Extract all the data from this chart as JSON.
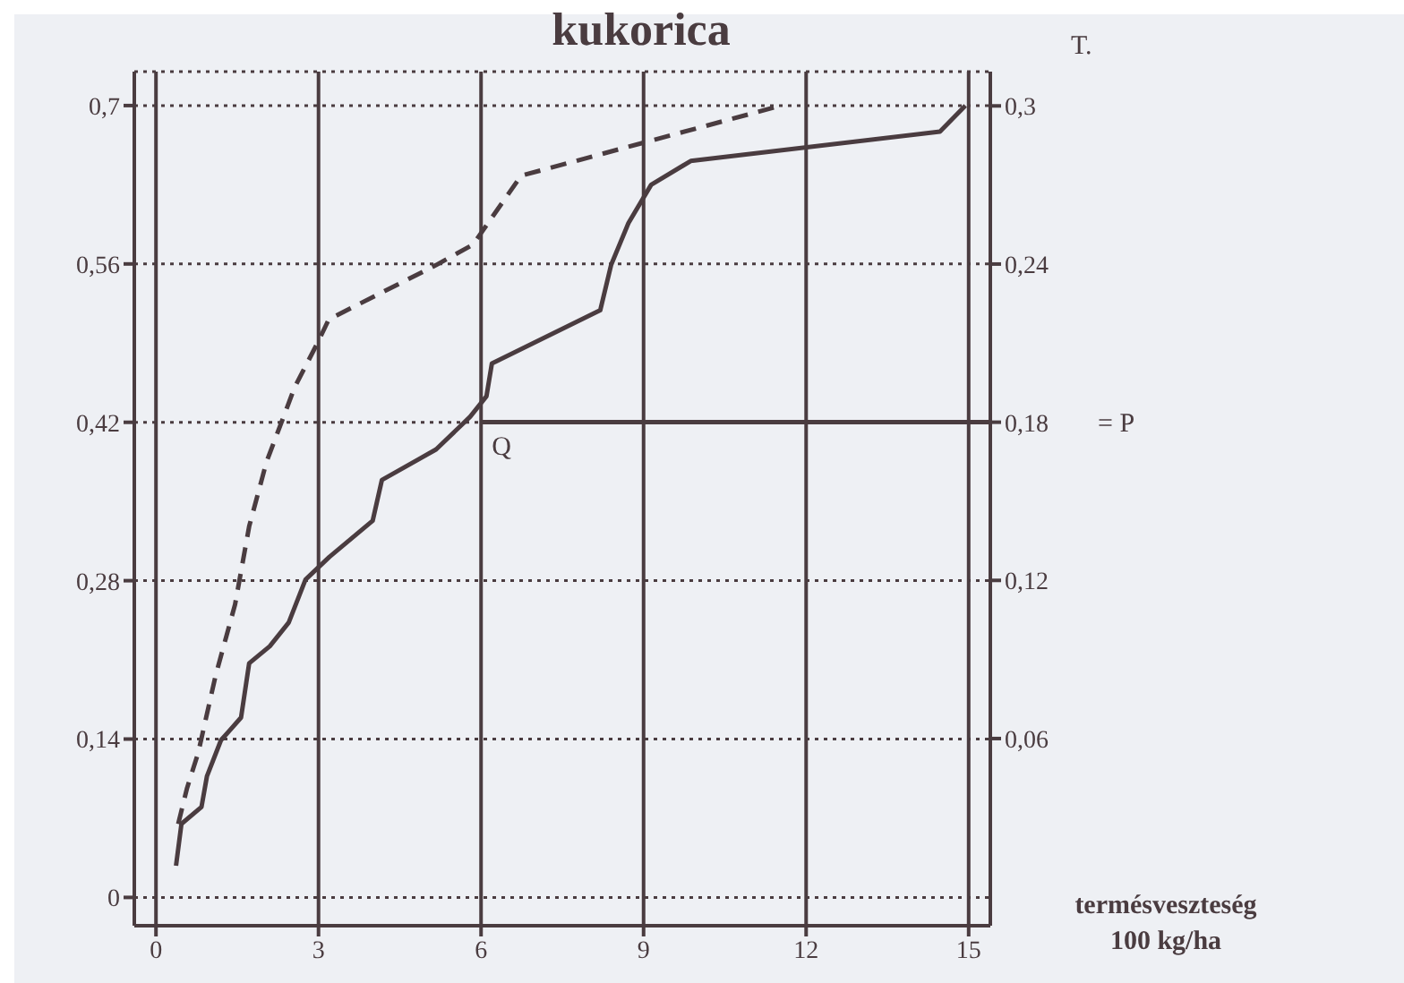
{
  "chart_data": {
    "type": "line",
    "title": "kukorica",
    "xlabel": "termésveszteség\n100 kg/ha",
    "y2label": "T.",
    "xlim": [
      -0.4,
      15.4
    ],
    "xticks": [
      0,
      3,
      6,
      9,
      12,
      15
    ],
    "ylim": [
      -0.025,
      0.73
    ],
    "yticks": [
      {
        "value": 0,
        "label": "0"
      },
      {
        "value": 0.14,
        "label": "0,14"
      },
      {
        "value": 0.28,
        "label": "0,28"
      },
      {
        "value": 0.42,
        "label": "0,42"
      },
      {
        "value": 0.56,
        "label": "0,56"
      },
      {
        "value": 0.7,
        "label": "0,7"
      }
    ],
    "y2lim": [
      -0.011,
      0.313
    ],
    "y2ticks": [
      {
        "value": 0.06,
        "label": "0,06"
      },
      {
        "value": 0.12,
        "label": "0,12"
      },
      {
        "value": 0.18,
        "label": "0,18"
      },
      {
        "value": 0.24,
        "label": "0,24"
      },
      {
        "value": 0.3,
        "label": "0,3"
      }
    ],
    "grid": true,
    "legend": false,
    "marker": "none",
    "series": [
      {
        "color": "#4a3c40",
        "line_style": "solid",
        "x": [
          0.37,
          0.47,
          0.84,
          0.94,
          1.2,
          1.57,
          1.72,
          2.1,
          2.45,
          2.76,
          3.2,
          4.0,
          4.17,
          5.17,
          5.8,
          6.1,
          6.2,
          8.2,
          8.4,
          8.72,
          9.14,
          9.87,
          14.47,
          14.94
        ],
        "values": [
          0.028,
          0.065,
          0.08,
          0.107,
          0.139,
          0.159,
          0.207,
          0.222,
          0.243,
          0.281,
          0.301,
          0.333,
          0.369,
          0.396,
          0.425,
          0.443,
          0.472,
          0.519,
          0.559,
          0.596,
          0.63,
          0.651,
          0.677,
          0.7
        ]
      },
      {
        "color": "#4a3c40",
        "line_style": "dashed",
        "x": [
          0.41,
          0.57,
          0.78,
          1.1,
          1.46,
          1.72,
          2.04,
          2.56,
          2.98,
          3.19,
          5.17,
          5.85,
          6.74,
          9.14,
          11.54
        ],
        "values": [
          0.065,
          0.096,
          0.128,
          0.196,
          0.259,
          0.328,
          0.385,
          0.451,
          0.49,
          0.511,
          0.559,
          0.577,
          0.638,
          0.669,
          0.7
        ]
      }
    ],
    "ref_lines": [
      {
        "axis": "y2",
        "value": 0.18,
        "label": "= P",
        "color": "#4a3c40"
      }
    ],
    "annotations": [
      {
        "text": "Q",
        "x": 6,
        "y": 0.42
      }
    ]
  }
}
